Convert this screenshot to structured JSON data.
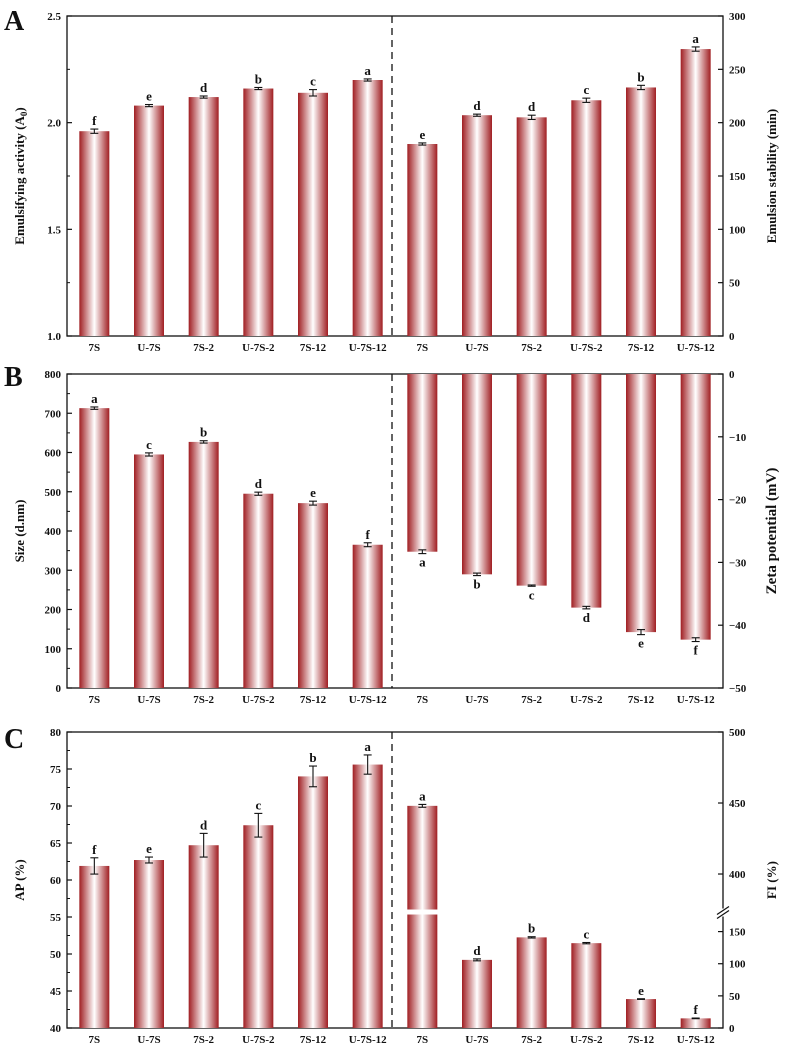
{
  "colors": {
    "bar_edge": "#a01e22",
    "bar_center": "#ffffff",
    "axis": "#111111"
  },
  "chart_data": [
    {
      "panel": "A",
      "type": "bar",
      "categories": [
        "7S",
        "U-7S",
        "7S-2",
        "U-7S-2",
        "7S-12",
        "U-7S-12"
      ],
      "left": {
        "ylabel": "Emulsifying activity (A",
        "ylabel_sub": "0",
        "ylabel_end": ")",
        "ylim": [
          1.0,
          2.5
        ],
        "ticks": [
          "1.0",
          "1.5",
          "2.0",
          "2.5"
        ],
        "values": [
          1.96,
          2.08,
          2.12,
          2.16,
          2.14,
          2.2
        ],
        "errors": [
          0.01,
          0.005,
          0.005,
          0.005,
          0.015,
          0.005
        ],
        "letters": [
          "f",
          "e",
          "d",
          "b",
          "c",
          "a"
        ]
      },
      "right": {
        "ylabel": "Emulsion stability (min)",
        "ylim": [
          0,
          300
        ],
        "ticks": [
          "0",
          "50",
          "100",
          "150",
          "200",
          "250",
          "300"
        ],
        "values": [
          180,
          207,
          205,
          221,
          233,
          269
        ],
        "errors": [
          1,
          1,
          2,
          2,
          2,
          2
        ],
        "letters": [
          "e",
          "d",
          "d",
          "c",
          "b",
          "a"
        ]
      }
    },
    {
      "panel": "B",
      "type": "bar",
      "categories": [
        "7S",
        "U-7S",
        "7S-2",
        "U-7S-2",
        "7S-12",
        "U-7S-12"
      ],
      "left": {
        "ylabel": "Size (d.nm)",
        "ylim": [
          0,
          800
        ],
        "ticks": [
          "0",
          "100",
          "200",
          "300",
          "400",
          "500",
          "600",
          "700",
          "800"
        ],
        "values": [
          713,
          595,
          627,
          495,
          471,
          365
        ],
        "errors": [
          3,
          4,
          3,
          4,
          5,
          5
        ],
        "letters": [
          "a",
          "c",
          "b",
          "d",
          "e",
          "f"
        ]
      },
      "right": {
        "ylabel": "Zeta potential (mV)",
        "ylim": [
          -50,
          0
        ],
        "ticks": [
          "-50",
          "-40",
          "-30",
          "-20",
          "-10",
          "0"
        ],
        "values": [
          -28.3,
          -31.9,
          -33.7,
          -37.2,
          -41.1,
          -42.3
        ],
        "errors": [
          0.3,
          0.2,
          0.1,
          0.2,
          0.4,
          0.3
        ],
        "letters": [
          "a",
          "b",
          "c",
          "d",
          "e",
          "f"
        ]
      }
    },
    {
      "panel": "C",
      "type": "bar",
      "categories": [
        "7S",
        "U-7S",
        "7S-2",
        "U-7S-2",
        "7S-12",
        "U-7S-12"
      ],
      "left": {
        "ylabel": "AP (%)",
        "ylim": [
          40,
          80
        ],
        "ticks": [
          "40",
          "45",
          "50",
          "55",
          "60",
          "65",
          "70",
          "75",
          "80"
        ],
        "values": [
          61.9,
          62.7,
          64.7,
          67.4,
          74.0,
          75.6
        ],
        "errors": [
          1.1,
          0.4,
          1.6,
          1.6,
          1.4,
          1.3
        ],
        "letters": [
          "f",
          "e",
          "d",
          "c",
          "b",
          "a"
        ]
      },
      "right": {
        "ylabel": "FI (%)",
        "ylim": [
          0,
          500
        ],
        "axis_break": [
          175,
          375
        ],
        "ticks": [
          "0",
          "50",
          "100",
          "150",
          "400",
          "450",
          "500"
        ],
        "values": [
          448,
          106,
          141,
          132,
          45,
          15
        ],
        "errors": [
          1,
          1.5,
          1,
          1,
          0.5,
          0.5
        ],
        "letters": [
          "a",
          "d",
          "b",
          "c",
          "e",
          "f"
        ]
      }
    }
  ]
}
